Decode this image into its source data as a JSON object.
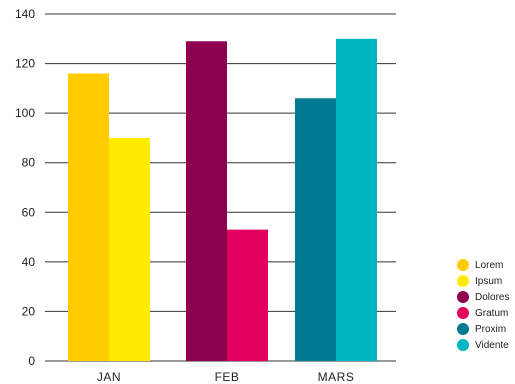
{
  "chart_data": {
    "type": "bar",
    "categories": [
      "JAN",
      "FEB",
      "MARS"
    ],
    "series": [
      {
        "name": "Lorem",
        "color": "#FFCC00",
        "values": [
          116,
          null,
          null
        ]
      },
      {
        "name": "Ipsum",
        "color": "#FFEB00",
        "values": [
          90,
          null,
          null
        ]
      },
      {
        "name": "Dolores",
        "color": "#8E0050",
        "values": [
          null,
          129,
          null
        ]
      },
      {
        "name": "Gratum",
        "color": "#E2005F",
        "values": [
          null,
          53,
          null
        ]
      },
      {
        "name": "Proxim",
        "color": "#007A91",
        "values": [
          null,
          null,
          106
        ]
      },
      {
        "name": "Vidente",
        "color": "#00B5C2",
        "values": [
          null,
          null,
          130
        ]
      }
    ],
    "yticks": [
      "0",
      "20",
      "40",
      "60",
      "80",
      "100",
      "120",
      "140"
    ],
    "ylim": [
      0,
      140
    ],
    "grid": true,
    "legend": "bottom-right"
  }
}
